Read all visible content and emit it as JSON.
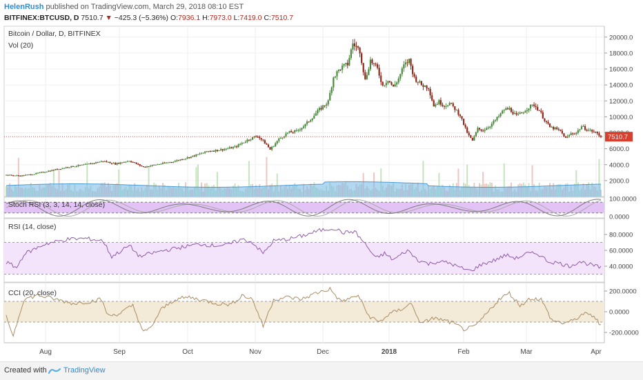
{
  "header": {
    "username": "HelenRush",
    "published": "published on TradingView.com, March 29, 2018 08:10 EST",
    "symbol": "BITFINEX:BTCUSD, D",
    "last": "7510.7",
    "arrow": "▼",
    "change": "−425.3 (−5.36%)",
    "open_label": "O:",
    "open": "7936.1",
    "high_label": "H:",
    "high": "7973.0",
    "low_label": "L:",
    "low": "7419.0",
    "close_label": "C:",
    "close": "7510.7"
  },
  "footer": {
    "created_with": "Created with",
    "brand": "TradingView"
  },
  "colors": {
    "up": "#4a8a3c",
    "down": "#8c2a1e",
    "rsi": "#8e5aa8",
    "cci": "#a88d63",
    "volume": "#7fbde8",
    "price_line": "#e04a3c",
    "stoch_band": "#e3c3f5",
    "rsi_band": "#f3e4fb",
    "cci_band": "#f4ead8"
  },
  "chart_data": {
    "type": "candlestick",
    "panes": [
      {
        "title": "Bitcoin / Dollar, D, BITFINEX",
        "subtitle": "Vol (20)",
        "ylim": [
          0,
          20500
        ],
        "yticks": [
          "2000.0",
          "4000.0",
          "6000.0",
          "8000.0",
          "10000.0",
          "12000.0",
          "14000.0",
          "16000.0",
          "18000.0",
          "20000.0"
        ],
        "last_price_label": "7510.7"
      },
      {
        "title": "Stoch RSI (3, 3, 14, 14, close)",
        "ylim": [
          0,
          100
        ],
        "yticks": [
          "0.0000",
          "100.0000"
        ],
        "band": [
          20,
          80
        ]
      },
      {
        "title": "RSI (14, close)",
        "ylim": [
          20,
          100
        ],
        "yticks": [
          "40.0000",
          "60.0000",
          "80.0000"
        ],
        "band": [
          30,
          70
        ]
      },
      {
        "title": "CCI (20, close)",
        "ylim": [
          -300,
          280
        ],
        "yticks": [
          "-200.0000",
          "0.0000",
          "200.0000"
        ],
        "band": [
          -100,
          100
        ]
      }
    ],
    "x_labels": [
      "Aug",
      "Sep",
      "Oct",
      "Nov",
      "Dec",
      "2018",
      "Feb",
      "Mar",
      "Apr"
    ],
    "price_anchors": [
      [
        0,
        2700
      ],
      [
        8,
        2600
      ],
      [
        15,
        2800
      ],
      [
        25,
        3250
      ],
      [
        35,
        3700
      ],
      [
        45,
        4000
      ],
      [
        55,
        4450
      ],
      [
        62,
        4100
      ],
      [
        70,
        4500
      ],
      [
        78,
        3700
      ],
      [
        85,
        4000
      ],
      [
        95,
        4400
      ],
      [
        105,
        5000
      ],
      [
        115,
        5700
      ],
      [
        123,
        5900
      ],
      [
        130,
        6200
      ],
      [
        138,
        7200
      ],
      [
        143,
        7600
      ],
      [
        148,
        6500
      ],
      [
        150,
        5900
      ],
      [
        155,
        7200
      ],
      [
        160,
        8000
      ],
      [
        165,
        8200
      ],
      [
        170,
        9000
      ],
      [
        178,
        10900
      ],
      [
        183,
        11900
      ],
      [
        186,
        15000
      ],
      [
        190,
        16100
      ],
      [
        194,
        16600
      ],
      [
        197,
        19200
      ],
      [
        201,
        18300
      ],
      [
        204,
        14600
      ],
      [
        207,
        17100
      ],
      [
        211,
        16000
      ],
      [
        214,
        13900
      ],
      [
        217,
        14700
      ],
      [
        220,
        13700
      ],
      [
        223,
        14800
      ],
      [
        226,
        16400
      ],
      [
        229,
        17100
      ],
      [
        232,
        14900
      ],
      [
        236,
        14000
      ],
      [
        240,
        13700
      ],
      [
        243,
        11400
      ],
      [
        246,
        11900
      ],
      [
        249,
        11400
      ],
      [
        252,
        11700
      ],
      [
        255,
        11000
      ],
      [
        258,
        10200
      ],
      [
        261,
        8500
      ],
      [
        263,
        7600
      ],
      [
        265,
        7000
      ],
      [
        268,
        8500
      ],
      [
        271,
        8300
      ],
      [
        275,
        8900
      ],
      [
        279,
        9800
      ],
      [
        283,
        10900
      ],
      [
        286,
        11000
      ],
      [
        290,
        10100
      ],
      [
        293,
        10500
      ],
      [
        297,
        11200
      ],
      [
        300,
        11500
      ],
      [
        303,
        10800
      ],
      [
        306,
        9600
      ],
      [
        309,
        8700
      ],
      [
        312,
        8500
      ],
      [
        315,
        8200
      ],
      [
        318,
        7300
      ],
      [
        321,
        7900
      ],
      [
        324,
        8000
      ],
      [
        327,
        8800
      ],
      [
        330,
        8400
      ],
      [
        333,
        8200
      ],
      [
        336,
        7900
      ],
      [
        338,
        7511
      ]
    ],
    "rsi_anchors": [
      [
        0,
        45
      ],
      [
        6,
        38
      ],
      [
        10,
        55
      ],
      [
        22,
        68
      ],
      [
        35,
        74
      ],
      [
        45,
        75
      ],
      [
        55,
        72
      ],
      [
        60,
        52
      ],
      [
        70,
        66
      ],
      [
        76,
        52
      ],
      [
        82,
        56
      ],
      [
        90,
        60
      ],
      [
        100,
        64
      ],
      [
        110,
        68
      ],
      [
        118,
        66
      ],
      [
        126,
        67
      ],
      [
        134,
        74
      ],
      [
        140,
        70
      ],
      [
        146,
        56
      ],
      [
        152,
        72
      ],
      [
        160,
        74
      ],
      [
        168,
        78
      ],
      [
        178,
        85
      ],
      [
        186,
        88
      ],
      [
        192,
        82
      ],
      [
        198,
        84
      ],
      [
        204,
        68
      ],
      [
        210,
        50
      ],
      [
        215,
        56
      ],
      [
        220,
        48
      ],
      [
        228,
        60
      ],
      [
        234,
        48
      ],
      [
        240,
        43
      ],
      [
        246,
        46
      ],
      [
        252,
        44
      ],
      [
        258,
        38
      ],
      [
        264,
        34
      ],
      [
        270,
        42
      ],
      [
        278,
        48
      ],
      [
        284,
        54
      ],
      [
        290,
        50
      ],
      [
        296,
        56
      ],
      [
        302,
        56
      ],
      [
        308,
        46
      ],
      [
        314,
        44
      ],
      [
        320,
        40
      ],
      [
        326,
        46
      ],
      [
        332,
        42
      ],
      [
        338,
        38
      ]
    ],
    "cci_anchors": [
      [
        0,
        -50
      ],
      [
        4,
        -230
      ],
      [
        10,
        120
      ],
      [
        18,
        160
      ],
      [
        28,
        120
      ],
      [
        38,
        80
      ],
      [
        48,
        100
      ],
      [
        54,
        120
      ],
      [
        58,
        -40
      ],
      [
        64,
        -20
      ],
      [
        72,
        60
      ],
      [
        78,
        -200
      ],
      [
        82,
        -160
      ],
      [
        88,
        20
      ],
      [
        96,
        120
      ],
      [
        104,
        140
      ],
      [
        112,
        110
      ],
      [
        120,
        80
      ],
      [
        128,
        70
      ],
      [
        134,
        160
      ],
      [
        140,
        120
      ],
      [
        146,
        -140
      ],
      [
        152,
        120
      ],
      [
        160,
        140
      ],
      [
        168,
        120
      ],
      [
        176,
        180
      ],
      [
        184,
        220
      ],
      [
        190,
        100
      ],
      [
        196,
        130
      ],
      [
        200,
        160
      ],
      [
        206,
        -40
      ],
      [
        212,
        -100
      ],
      [
        218,
        -20
      ],
      [
        224,
        20
      ],
      [
        230,
        80
      ],
      [
        236,
        -120
      ],
      [
        242,
        -60
      ],
      [
        248,
        -80
      ],
      [
        254,
        -110
      ],
      [
        260,
        -170
      ],
      [
        266,
        -150
      ],
      [
        272,
        -40
      ],
      [
        280,
        120
      ],
      [
        286,
        180
      ],
      [
        292,
        60
      ],
      [
        298,
        130
      ],
      [
        304,
        120
      ],
      [
        310,
        -80
      ],
      [
        316,
        -110
      ],
      [
        322,
        -90
      ],
      [
        328,
        -20
      ],
      [
        334,
        -40
      ],
      [
        338,
        -140
      ]
    ],
    "volume_max": 6000,
    "volume_ma_level": 1600
  }
}
